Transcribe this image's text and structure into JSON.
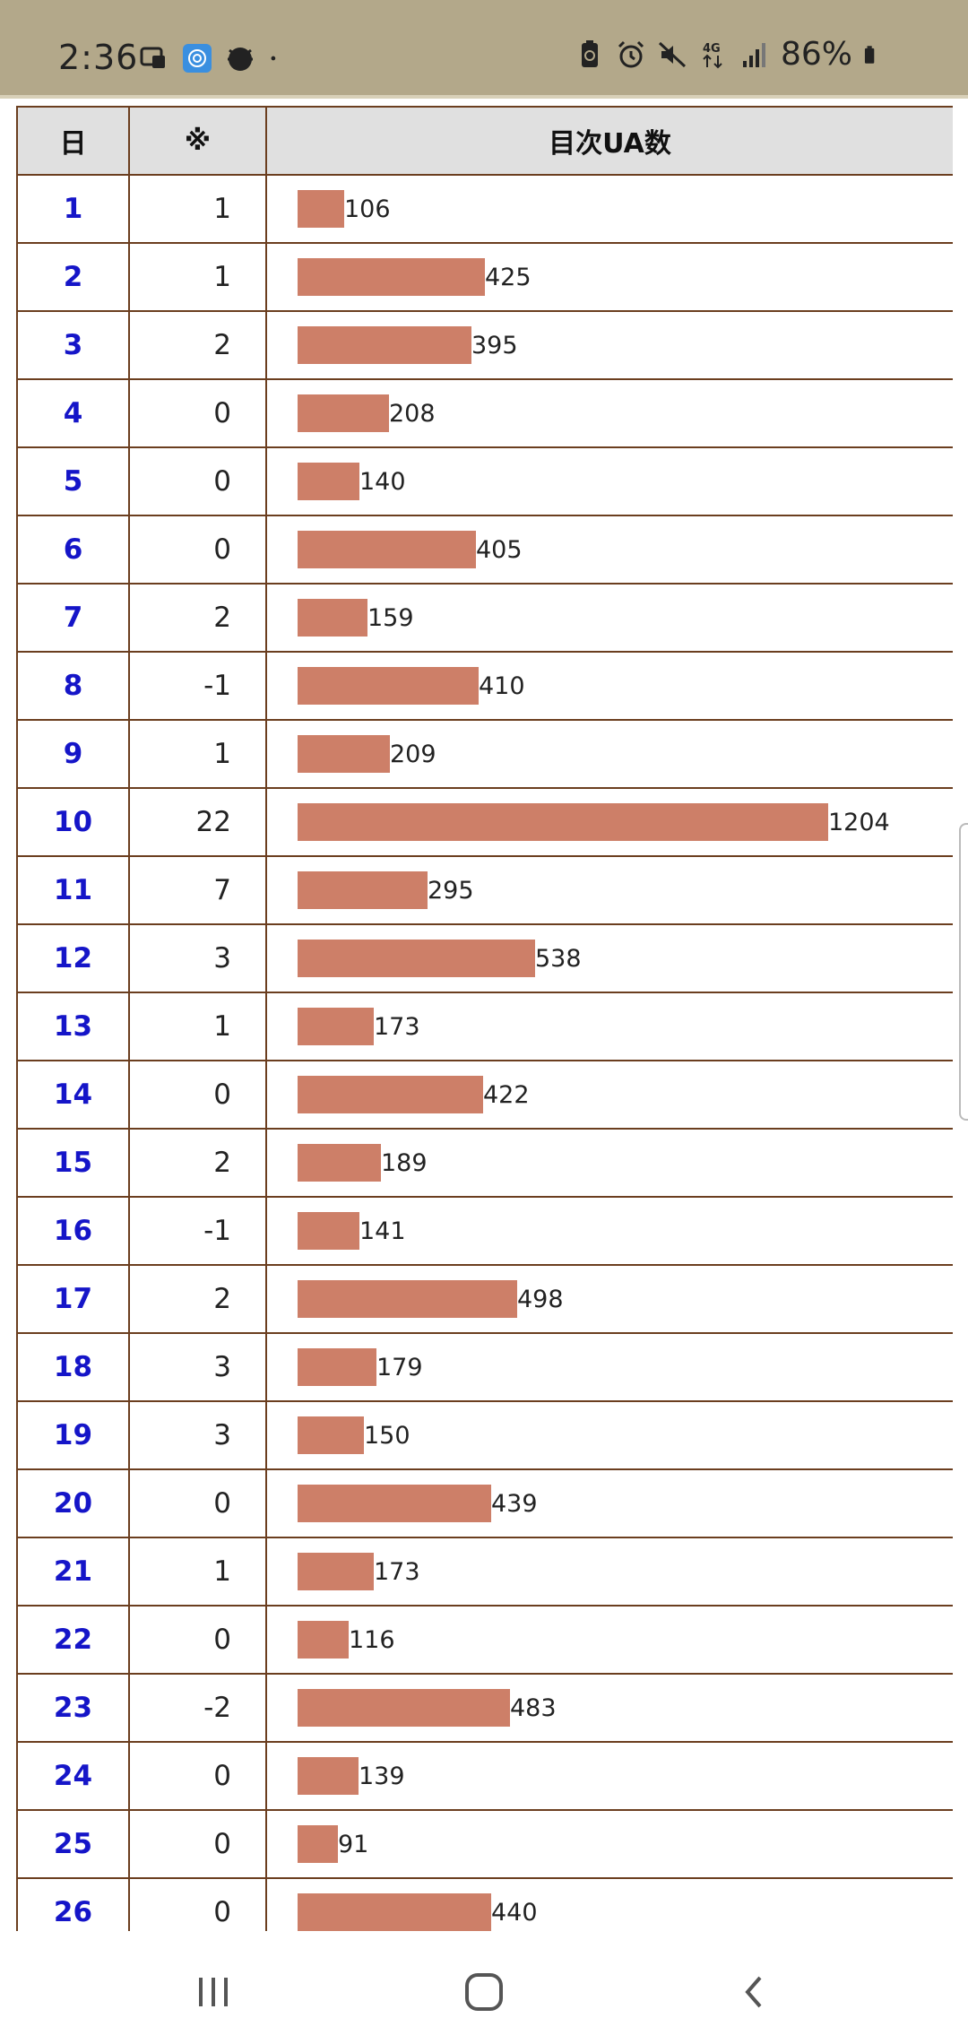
{
  "status_bar": {
    "time": "2:36",
    "battery_percent": "86%",
    "left_icons": [
      "screen-mirror-icon",
      "fingerprint-app-icon",
      "bug-app-icon",
      "dot-icon"
    ],
    "right_icons": [
      "battery-saver-icon",
      "alarm-icon",
      "mute-icon",
      "4g-icon",
      "signal-icon",
      "battery-icon"
    ]
  },
  "table": {
    "headers": {
      "day": "日",
      "mark": "※",
      "value": "目次UA数"
    },
    "rows": [
      {
        "day": "1",
        "mark": "1",
        "value": 106
      },
      {
        "day": "2",
        "mark": "1",
        "value": 425
      },
      {
        "day": "3",
        "mark": "2",
        "value": 395
      },
      {
        "day": "4",
        "mark": "0",
        "value": 208
      },
      {
        "day": "5",
        "mark": "0",
        "value": 140
      },
      {
        "day": "6",
        "mark": "0",
        "value": 405
      },
      {
        "day": "7",
        "mark": "2",
        "value": 159
      },
      {
        "day": "8",
        "mark": "-1",
        "value": 410
      },
      {
        "day": "9",
        "mark": "1",
        "value": 209
      },
      {
        "day": "10",
        "mark": "22",
        "value": 1204
      },
      {
        "day": "11",
        "mark": "7",
        "value": 295
      },
      {
        "day": "12",
        "mark": "3",
        "value": 538
      },
      {
        "day": "13",
        "mark": "1",
        "value": 173
      },
      {
        "day": "14",
        "mark": "0",
        "value": 422
      },
      {
        "day": "15",
        "mark": "2",
        "value": 189
      },
      {
        "day": "16",
        "mark": "-1",
        "value": 141
      },
      {
        "day": "17",
        "mark": "2",
        "value": 498
      },
      {
        "day": "18",
        "mark": "3",
        "value": 179
      },
      {
        "day": "19",
        "mark": "3",
        "value": 150
      },
      {
        "day": "20",
        "mark": "0",
        "value": 439
      },
      {
        "day": "21",
        "mark": "1",
        "value": 173
      },
      {
        "day": "22",
        "mark": "0",
        "value": 116
      },
      {
        "day": "23",
        "mark": "-2",
        "value": 483
      },
      {
        "day": "24",
        "mark": "0",
        "value": 139
      },
      {
        "day": "25",
        "mark": "0",
        "value": 91
      },
      {
        "day": "26",
        "mark": "0",
        "value": 440
      }
    ],
    "bar_color": "#cd7f68",
    "day_color": "#1515c8",
    "header_bg": "#e0e0e0",
    "border_color": "#6b3e1f"
  },
  "nav_bar": {
    "buttons": [
      "recent-apps-icon",
      "home-icon",
      "back-icon"
    ]
  }
}
